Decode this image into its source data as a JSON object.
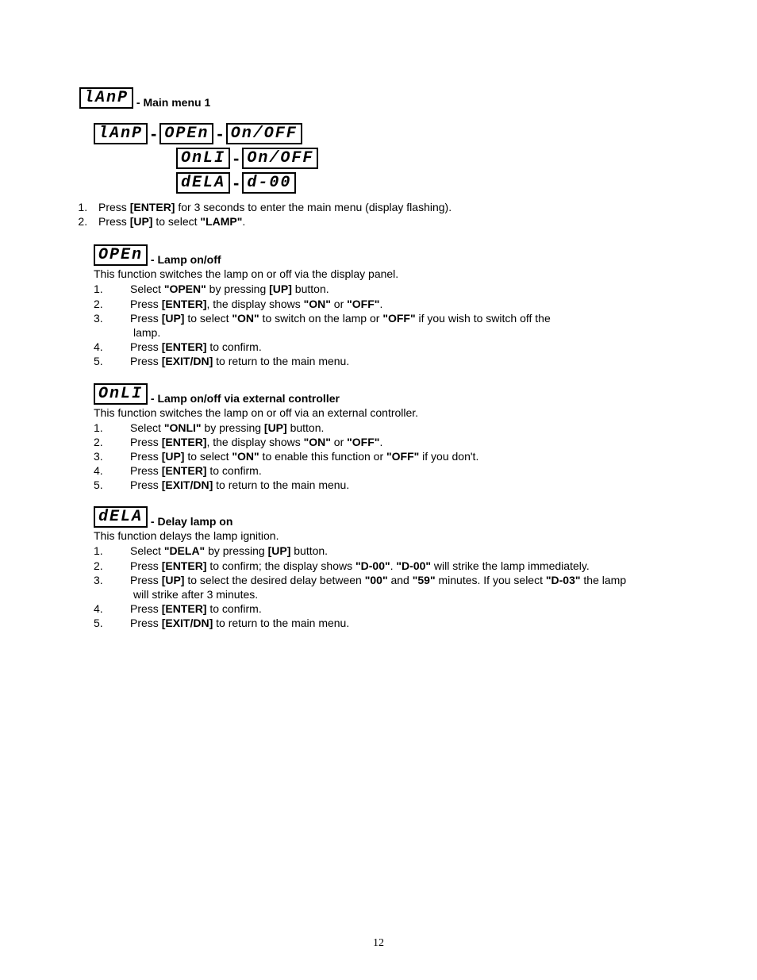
{
  "pageNumber": "12",
  "mainHeading": {
    "lcd": "lAnP",
    "title": "- Main menu 1"
  },
  "menuTree": {
    "rows": [
      {
        "indentPx": 0,
        "cells": [
          "lAnP",
          "OPEn",
          "On/OFF"
        ]
      },
      {
        "indentPx": 104,
        "cells": [
          "OnLI",
          "On/OFF"
        ]
      },
      {
        "indentPx": 104,
        "cells": [
          "dELA",
          "d-00"
        ]
      }
    ]
  },
  "topList": [
    {
      "pre": "Press ",
      "b1": "[ENTER]",
      "mid": " for 3 seconds to enter the main menu (display flashing)."
    },
    {
      "pre": "Press ",
      "b1": "[UP]",
      "mid": " to select ",
      "b2": "\"LAMP\"",
      "post": "."
    }
  ],
  "sections": [
    {
      "lcd": "OPEn",
      "title": "- Lamp on/off",
      "intro": "This function switches the lamp on or off via the display panel.",
      "steps": [
        {
          "parts": [
            {
              "t": "Select "
            },
            {
              "b": "\"OPEN\""
            },
            {
              "t": " by pressing "
            },
            {
              "b": "[UP]"
            },
            {
              "t": " button."
            }
          ]
        },
        {
          "parts": [
            {
              "t": "Press "
            },
            {
              "b": "[ENTER]"
            },
            {
              "t": ", the display shows "
            },
            {
              "b": "\"ON\""
            },
            {
              "t": " or "
            },
            {
              "b": "\"OFF\""
            },
            {
              "t": "."
            }
          ]
        },
        {
          "parts": [
            {
              "t": "Press "
            },
            {
              "b": "[UP]"
            },
            {
              "t": " to select "
            },
            {
              "b": "\"ON\""
            },
            {
              "t": " to switch on the lamp or "
            },
            {
              "b": "\"OFF\""
            },
            {
              "t": " if you wish to switch off the"
            }
          ],
          "cont": " lamp."
        },
        {
          "parts": [
            {
              "t": "Press "
            },
            {
              "b": "[ENTER]"
            },
            {
              "t": " to confirm."
            }
          ]
        },
        {
          "parts": [
            {
              "t": "Press "
            },
            {
              "b": "[EXIT/DN]"
            },
            {
              "t": " to return to the main menu."
            }
          ]
        }
      ]
    },
    {
      "lcd": "OnLI",
      "title": "- Lamp on/off via external controller",
      "intro": "This function switches the lamp on or off via an external controller.",
      "steps": [
        {
          "parts": [
            {
              "t": "Select "
            },
            {
              "b": "\"ONLI\""
            },
            {
              "t": " by pressing "
            },
            {
              "b": "[UP]"
            },
            {
              "t": " button."
            }
          ]
        },
        {
          "parts": [
            {
              "t": "Press "
            },
            {
              "b": "[ENTER]"
            },
            {
              "t": ", the display shows "
            },
            {
              "b": "\"ON\""
            },
            {
              "t": " or "
            },
            {
              "b": "\"OFF\""
            },
            {
              "t": "."
            }
          ]
        },
        {
          "parts": [
            {
              "t": "Press "
            },
            {
              "b": "[UP]"
            },
            {
              "t": " to select "
            },
            {
              "b": "\"ON\""
            },
            {
              "t": " to enable this function or "
            },
            {
              "b": "\"OFF\""
            },
            {
              "t": " if you don't."
            }
          ]
        },
        {
          "parts": [
            {
              "t": "Press "
            },
            {
              "b": "[ENTER]"
            },
            {
              "t": " to confirm."
            }
          ]
        },
        {
          "parts": [
            {
              "t": "Press "
            },
            {
              "b": "[EXIT/DN]"
            },
            {
              "t": " to return to the main menu."
            }
          ]
        }
      ]
    },
    {
      "lcd": "dELA",
      "title": "- Delay lamp on",
      "intro": "This function delays the lamp ignition.",
      "steps": [
        {
          "parts": [
            {
              "t": "Select "
            },
            {
              "b": "\"DELA\""
            },
            {
              "t": " by pressing "
            },
            {
              "b": "[UP]"
            },
            {
              "t": " button."
            }
          ]
        },
        {
          "parts": [
            {
              "t": "Press "
            },
            {
              "b": "[ENTER]"
            },
            {
              "t": " to confirm; the display shows "
            },
            {
              "b": "\"D-00\""
            },
            {
              "t": ". "
            },
            {
              "b": "\"D-00\""
            },
            {
              "t": " will strike the lamp immediately."
            }
          ]
        },
        {
          "parts": [
            {
              "t": "Press "
            },
            {
              "b": "[UP]"
            },
            {
              "t": " to select the desired delay between "
            },
            {
              "b": "\"00\""
            },
            {
              "t": " and "
            },
            {
              "b": "\"59\""
            },
            {
              "t": " minutes. If you select "
            },
            {
              "b": "\"D-03\""
            },
            {
              "t": " the lamp"
            }
          ],
          "cont": " will strike after 3 minutes."
        },
        {
          "parts": [
            {
              "t": "Press "
            },
            {
              "b": "[ENTER]"
            },
            {
              "t": " to confirm."
            }
          ]
        },
        {
          "parts": [
            {
              "t": "Press "
            },
            {
              "b": "[EXIT/DN]"
            },
            {
              "t": " to return to the main menu."
            }
          ]
        }
      ]
    }
  ]
}
